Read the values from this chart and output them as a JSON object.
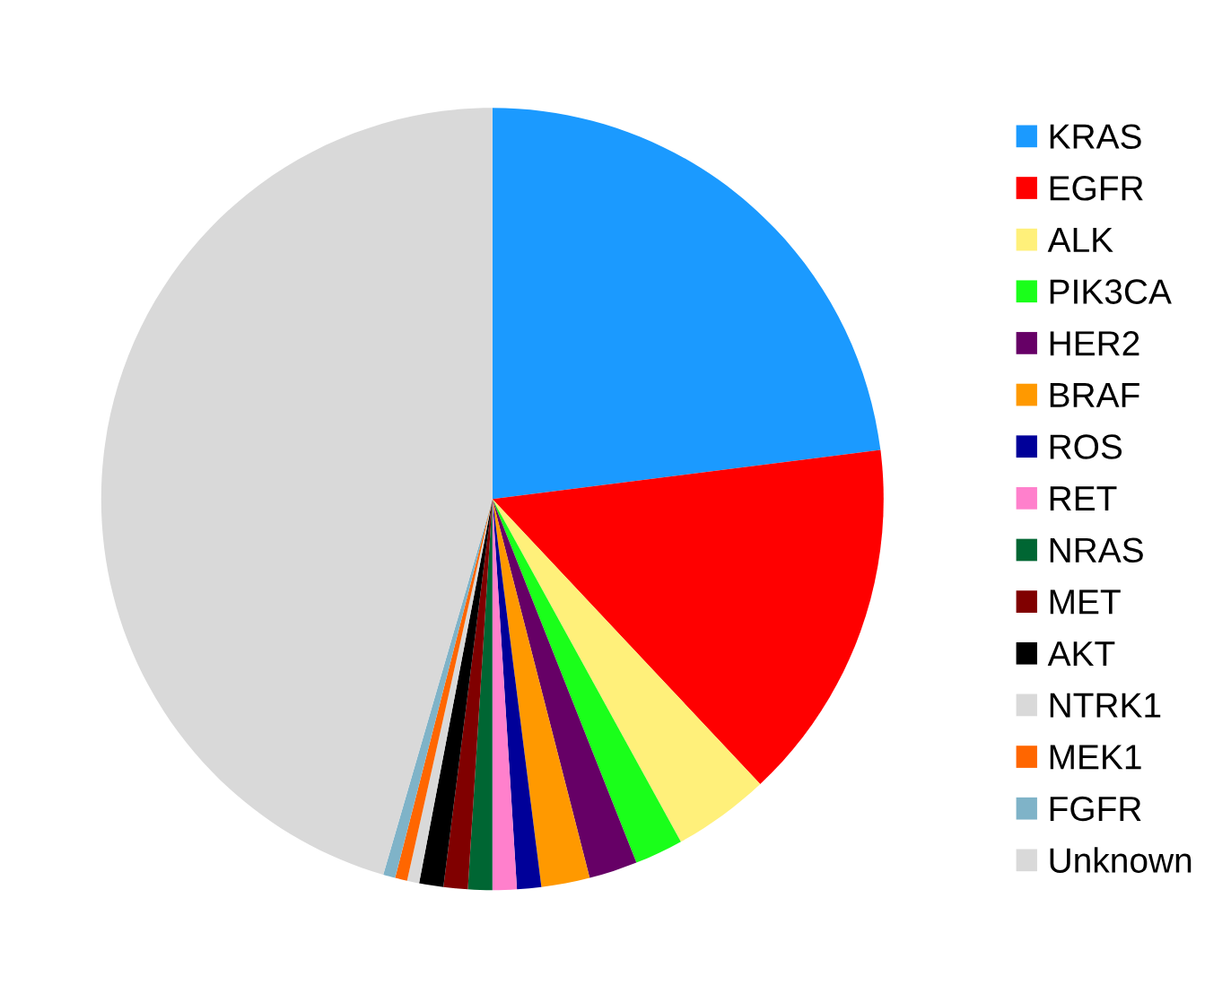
{
  "chart_data": {
    "type": "pie",
    "categories": [
      "KRAS",
      "EGFR",
      "ALK",
      "PIK3CA",
      "HER2",
      "BRAF",
      "ROS",
      "RET",
      "NRAS",
      "MET",
      "AKT",
      "NTRK1",
      "MEK1",
      "FGFR",
      "Unknown"
    ],
    "values": [
      23,
      15,
      4,
      2,
      2,
      2,
      1,
      1,
      1,
      1,
      1,
      0.5,
      0.5,
      0.5,
      45.5
    ],
    "colors": [
      "#1b9aff",
      "#ff0000",
      "#fff07a",
      "#1aff1a",
      "#660066",
      "#ff9900",
      "#000099",
      "#ff80cc",
      "#006633",
      "#800000",
      "#000000",
      "#d9d9d9",
      "#ff6600",
      "#7fb3c8",
      "#d9d9d9"
    ],
    "legend": "right"
  }
}
